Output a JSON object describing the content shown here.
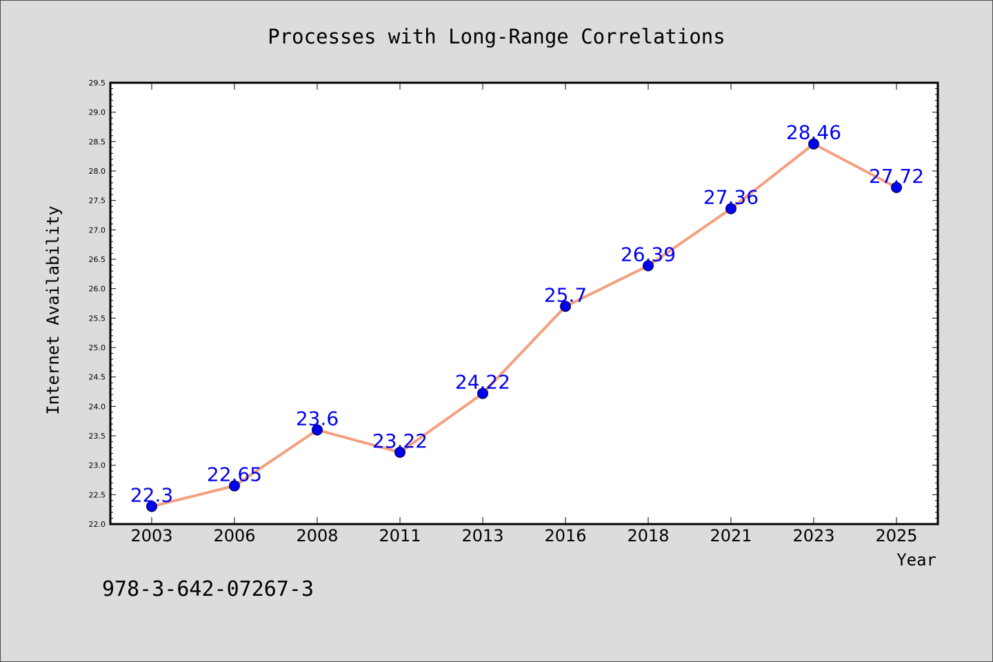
{
  "chart_data": {
    "type": "line",
    "title": "Processes with Long-Range Correlations",
    "xlabel": "Year",
    "ylabel": "Internet Availability",
    "categories": [
      "2003",
      "2006",
      "2008",
      "2011",
      "2013",
      "2016",
      "2018",
      "2021",
      "2023",
      "2025"
    ],
    "series": [
      {
        "values": [
          22.3,
          22.65,
          23.6,
          23.22,
          24.22,
          25.7,
          26.39,
          27.36,
          28.46,
          27.72
        ],
        "data_labels": [
          "22.3",
          "22.65",
          "23.6",
          "23.22",
          "24.22",
          "25.7",
          "26.39",
          "27.36",
          "28.46",
          "27.72"
        ],
        "line_color": "#f4a07e",
        "marker_color": "#0000ee"
      }
    ],
    "ylim": [
      22.0,
      29.5
    ],
    "yticks": [
      "22.0",
      "22.5",
      "23.0",
      "23.5",
      "24.0",
      "24.5",
      "25.0",
      "25.5",
      "26.0",
      "26.5",
      "27.0",
      "27.5",
      "28.0",
      "28.5",
      "29.0",
      "29.5"
    ],
    "grid": false,
    "label_color": "#0000ee"
  },
  "footer_text": "978-3-642-07267-3",
  "colors": {
    "background": "#dcdcdc",
    "plot_background": "#ffffff",
    "axis": "#000000"
  }
}
